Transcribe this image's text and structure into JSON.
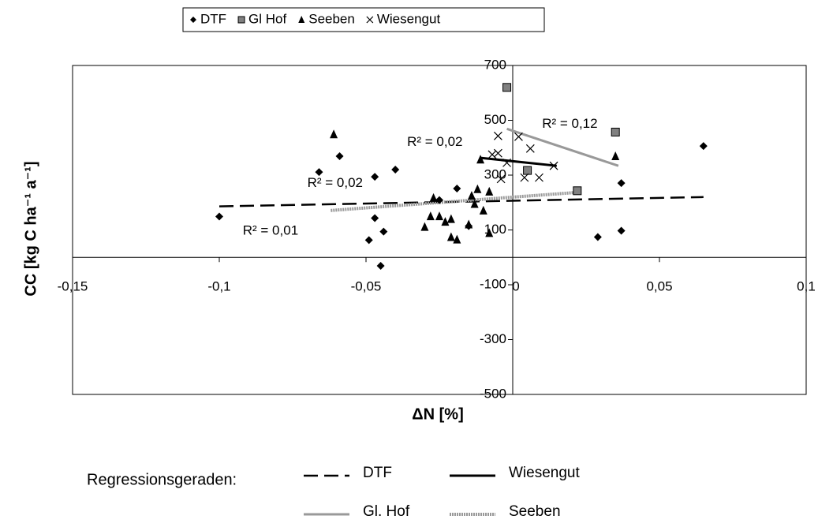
{
  "chart_data": {
    "type": "scatter",
    "x_label": "ΔN [%]",
    "y_label": "CC [kg C ha⁻¹ a⁻¹]",
    "xlim": [
      -0.15,
      0.1
    ],
    "ylim": [
      -500,
      700
    ],
    "xticks": [
      {
        "value": -0.15,
        "label": "-0,15"
      },
      {
        "value": -0.1,
        "label": "-0,1"
      },
      {
        "value": -0.05,
        "label": "-0,05"
      },
      0,
      {
        "value": 0.05,
        "label": "0,05"
      },
      {
        "value": 0.1,
        "label": "0,1"
      }
    ],
    "yticks": [
      -500,
      -300,
      -100,
      100,
      300,
      500,
      700
    ],
    "grid": false,
    "legend": "top",
    "series": [
      {
        "name": "DTF",
        "color": "#000000",
        "marker": "diamond",
        "x": [
          -0.1,
          -0.059,
          -0.066,
          -0.047,
          -0.04,
          -0.047,
          -0.049,
          -0.044,
          -0.045,
          -0.025,
          -0.019,
          -0.015,
          0.037,
          0.029,
          0.037,
          0.065
        ],
        "values": [
          149,
          369,
          311,
          294,
          320,
          143,
          63,
          94,
          -31,
          209,
          251,
          114,
          271,
          74,
          97,
          406
        ]
      },
      {
        "name": "Gl Hof",
        "color": "#808080",
        "marker": "square",
        "x": [
          -0.002,
          0.005,
          0.035,
          0.022
        ],
        "values": [
          620,
          317,
          457,
          243
        ]
      },
      {
        "name": "Seeben",
        "color": "#000000",
        "marker": "triangle",
        "x": [
          -0.061,
          -0.027,
          -0.03,
          -0.028,
          -0.025,
          -0.023,
          -0.021,
          -0.021,
          -0.019,
          -0.014,
          -0.012,
          -0.013,
          -0.015,
          -0.01,
          -0.008,
          -0.008,
          -0.011,
          0.035
        ],
        "values": [
          449,
          217,
          111,
          150,
          150,
          130,
          140,
          74,
          65,
          225,
          249,
          195,
          120,
          171,
          89,
          240,
          357,
          369
        ]
      },
      {
        "name": "Wiesengut",
        "color": "#000000",
        "marker": "x",
        "x": [
          -0.005,
          -0.005,
          0.002,
          0.006,
          0.004,
          0.009,
          0.014,
          -0.002,
          -0.004,
          -0.007
        ],
        "values": [
          443,
          380,
          440,
          397,
          291,
          291,
          334,
          345,
          286,
          375
        ]
      }
    ],
    "regression_title": "Regressionsgeraden:",
    "regression_lines": [
      {
        "name": "DTF",
        "color": "#000000",
        "style": "dashed",
        "x": [
          -0.1,
          0.065
        ],
        "values": [
          186,
          220
        ]
      },
      {
        "name": "Wiesengut",
        "color": "#000000",
        "style": "solid",
        "x": [
          -0.011,
          0.015
        ],
        "values": [
          363,
          334
        ]
      },
      {
        "name": "Gl. Hof",
        "color": "#999999",
        "style": "solid",
        "x": [
          -0.002,
          0.036
        ],
        "values": [
          469,
          334
        ]
      },
      {
        "name": "Seeben",
        "color": "#999999",
        "style": "dotted",
        "x": [
          -0.062,
          0.022
        ],
        "values": [
          171,
          237
        ]
      }
    ],
    "annotations": [
      {
        "text": "R² = 0,01",
        "x": -0.092,
        "y": 95
      },
      {
        "text": "R² = 0,02",
        "x": -0.07,
        "y": 270
      },
      {
        "text": "R² = 0,02",
        "x": -0.036,
        "y": 420
      },
      {
        "text": "R² = 0,12",
        "x": 0.01,
        "y": 485
      }
    ]
  }
}
